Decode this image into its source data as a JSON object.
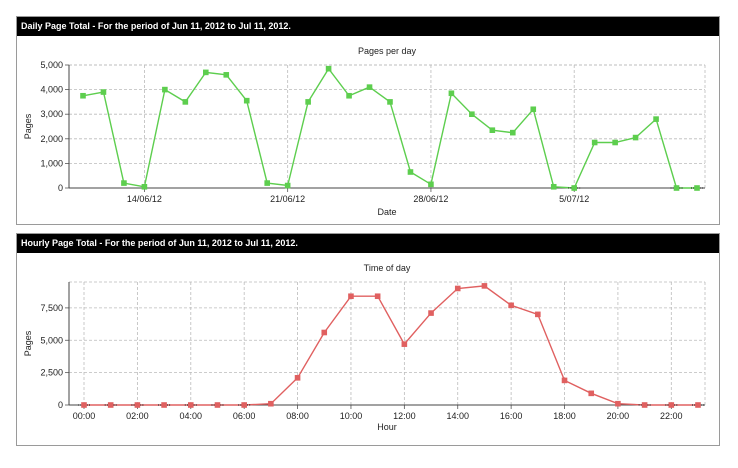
{
  "panels": {
    "daily": {
      "header": "Daily Page Total - For the period of Jun 11, 2012 to Jul 11, 2012."
    },
    "hourly": {
      "header": "Hourly Page Total - For the period of Jun 11, 2012 to Jul 11, 2012."
    }
  },
  "chart_data": [
    {
      "type": "line",
      "title": "Pages per day",
      "xlabel": "Date",
      "ylabel": "Pages",
      "ylim": [
        0,
        5000
      ],
      "yticks": [
        0,
        1000,
        2000,
        3000,
        4000,
        5000
      ],
      "ytick_labels": [
        "0",
        "1,000",
        "2,000",
        "3,000",
        "4,000",
        "5,000"
      ],
      "x": [
        "2012-06-11",
        "2012-06-12",
        "2012-06-13",
        "2012-06-14",
        "2012-06-15",
        "2012-06-16",
        "2012-06-17",
        "2012-06-18",
        "2012-06-19",
        "2012-06-20",
        "2012-06-21",
        "2012-06-22",
        "2012-06-23",
        "2012-06-24",
        "2012-06-25",
        "2012-06-26",
        "2012-06-27",
        "2012-06-28",
        "2012-06-29",
        "2012-06-30",
        "2012-07-01",
        "2012-07-02",
        "2012-07-03",
        "2012-07-04",
        "2012-07-05",
        "2012-07-06",
        "2012-07-07",
        "2012-07-08",
        "2012-07-09",
        "2012-07-10",
        "2012-07-11"
      ],
      "xticks": [
        "2012-06-14",
        "2012-06-21",
        "2012-06-28",
        "2012-07-05"
      ],
      "xtick_labels": [
        "14/06/12",
        "21/06/12",
        "28/06/12",
        "5/07/12"
      ],
      "series": [
        {
          "values": [
            3750,
            3900,
            200,
            50,
            4000,
            3500,
            4700,
            4600,
            3550,
            200,
            100,
            3500,
            4850,
            3750,
            4100,
            3500,
            650,
            150,
            3850,
            3000,
            2350,
            2250,
            3200,
            50,
            0,
            1850,
            1850,
            2050,
            2800,
            0,
            0
          ],
          "color": "#5dce4e"
        }
      ],
      "grid": true,
      "legend": "none"
    },
    {
      "type": "line",
      "title": "Time of day",
      "xlabel": "Hour",
      "ylabel": "Pages",
      "ylim": [
        0,
        9500
      ],
      "yticks": [
        0,
        2500,
        5000,
        7500
      ],
      "ytick_labels": [
        "0",
        "2,500",
        "5,000",
        "7,500"
      ],
      "x": [
        0,
        1,
        2,
        3,
        4,
        5,
        6,
        7,
        8,
        9,
        10,
        11,
        12,
        13,
        14,
        15,
        16,
        17,
        18,
        19,
        20,
        21,
        22,
        23
      ],
      "xticks": [
        0,
        2,
        4,
        6,
        8,
        10,
        12,
        14,
        16,
        18,
        20,
        22
      ],
      "xtick_labels": [
        "00:00",
        "02:00",
        "04:00",
        "06:00",
        "08:00",
        "10:00",
        "12:00",
        "14:00",
        "16:00",
        "18:00",
        "20:00",
        "22:00"
      ],
      "series": [
        {
          "values": [
            0,
            0,
            0,
            0,
            0,
            0,
            0,
            100,
            2100,
            5600,
            8400,
            8400,
            4700,
            7100,
            9000,
            9200,
            7700,
            7000,
            1900,
            900,
            100,
            0,
            0,
            0
          ],
          "color": "#e06060"
        }
      ],
      "grid": true,
      "legend": "none"
    }
  ]
}
